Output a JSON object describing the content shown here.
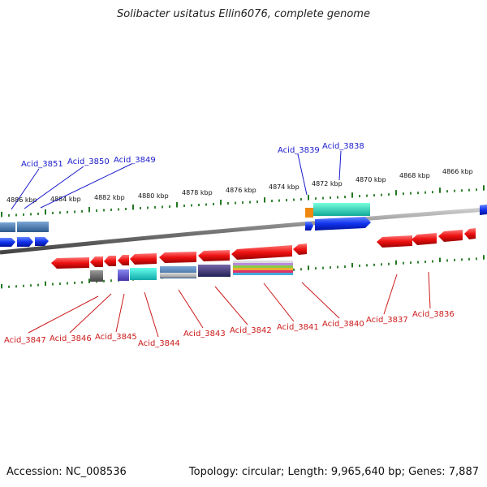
{
  "title": "Solibacter usitatus Ellin6076, complete genome",
  "footer": {
    "accession": "Accession: NC_008536",
    "summary": "Topology: circular; Length: 9,965,640 bp; Genes: 7,887"
  },
  "scale_labels": [
    "4886 kbp",
    "4884 kbp",
    "4882 kbp",
    "4880 kbp",
    "4878 kbp",
    "4876 kbp",
    "4874 kbp",
    "4872 kbp",
    "4870 kbp",
    "4868 kbp",
    "4866 kbp"
  ],
  "forward_genes": [
    "Acid_3851",
    "Acid_3850",
    "Acid_3849",
    "Acid_3839",
    "Acid_3838"
  ],
  "reverse_genes": [
    "Acid_3847",
    "Acid_3846",
    "Acid_3845",
    "Acid_3844",
    "Acid_3843",
    "Acid_3842",
    "Acid_3841",
    "Acid_3840",
    "Acid_3837",
    "Acid_3836"
  ],
  "colors": {
    "forward_label": "#1a1acc",
    "reverse_label": "#cc1a1a",
    "forward_arrow": "#1133ee",
    "reverse_arrow": "#ee1111",
    "backbone": "#888888",
    "tick": "#227722"
  }
}
